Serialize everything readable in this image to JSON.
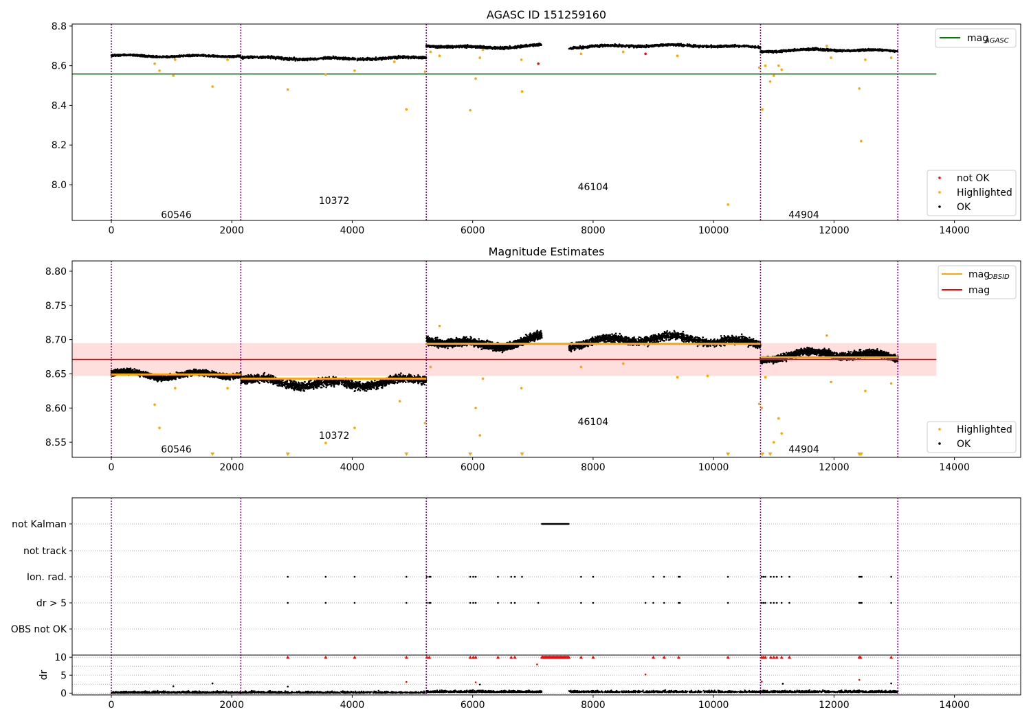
{
  "figure": {
    "title_top": "AGASC ID 151259160",
    "title_middle": "Magnitude Estimates"
  },
  "colors": {
    "ok": "#000000",
    "highlighted": "#ffa500",
    "not_ok": "#ff0000",
    "agasc_line": "#008000",
    "mag_line": "#ff0000",
    "mag_band": "#ffdede",
    "obsid_line": "#ffa500",
    "obsid_boundary": "#800080",
    "grid": "#b0b0b0"
  },
  "chart_data": [
    {
      "type": "scatter",
      "title": "AGASC ID 151259160",
      "xlim": [
        -650,
        15100
      ],
      "ylim": [
        7.82,
        8.81
      ],
      "x_ticks": [
        0,
        2000,
        4000,
        6000,
        8000,
        10000,
        12000,
        14000
      ],
      "x_tick_labels": [
        "0",
        "2000",
        "4000",
        "6000",
        "8000",
        "10000",
        "12000",
        "14000"
      ],
      "y_ticks": [
        8.0,
        8.2,
        8.4,
        8.6,
        8.8
      ],
      "y_tick_labels": [
        "8.0",
        "8.2",
        "8.4",
        "8.6",
        "8.8"
      ],
      "obsid_boundaries": [
        0,
        2150,
        5230,
        10780,
        13060
      ],
      "obsid_labels": [
        {
          "text": "60546",
          "x": 1080,
          "y": 7.85
        },
        {
          "text": "10372",
          "x": 3700,
          "y": 7.92
        },
        {
          "text": "46104",
          "x": 8000,
          "y": 7.99
        },
        {
          "text": "44904",
          "x": 11500,
          "y": 7.85
        }
      ],
      "bands": [
        {
          "x0": 0,
          "x1": 2150,
          "y": 8.651,
          "y_mid": 8.648,
          "spread": 0.008
        },
        {
          "x0": 2150,
          "x1": 5230,
          "y": 8.643,
          "y_mid": 8.635,
          "spread": 0.012
        },
        {
          "x0": 5230,
          "x1": 7150,
          "y": 8.703,
          "y_mid": 8.692,
          "spread": 0.011
        },
        {
          "x0": 7600,
          "x1": 10780,
          "y": 8.692,
          "y_mid": 8.702,
          "spread": 0.011
        },
        {
          "x0": 10780,
          "x1": 13060,
          "y": 8.672,
          "y_mid": 8.68,
          "spread": 0.01
        }
      ],
      "reference_lines": [
        {
          "name": "mag_AGASC",
          "y": 8.558,
          "x0": -650,
          "x1": 13700
        }
      ],
      "highlighted_points": [
        [
          720,
          8.61
        ],
        [
          800,
          8.575
        ],
        [
          1030,
          8.55
        ],
        [
          1060,
          8.63
        ],
        [
          1680,
          8.495
        ],
        [
          1930,
          8.63
        ],
        [
          2930,
          8.48
        ],
        [
          3560,
          8.555
        ],
        [
          4040,
          8.575
        ],
        [
          4700,
          8.62
        ],
        [
          4900,
          8.38
        ],
        [
          5210,
          8.57
        ],
        [
          5300,
          8.67
        ],
        [
          5450,
          8.65
        ],
        [
          5960,
          8.375
        ],
        [
          6050,
          8.535
        ],
        [
          6120,
          8.64
        ],
        [
          6170,
          8.68
        ],
        [
          6820,
          8.47
        ],
        [
          6810,
          8.63
        ],
        [
          7800,
          8.66
        ],
        [
          8500,
          8.67
        ],
        [
          9400,
          8.65
        ],
        [
          10240,
          7.9
        ],
        [
          10760,
          8.59
        ],
        [
          10810,
          8.38
        ],
        [
          10860,
          8.6
        ],
        [
          10940,
          8.52
        ],
        [
          11000,
          8.55
        ],
        [
          11080,
          8.6
        ],
        [
          11130,
          8.58
        ],
        [
          11880,
          8.7
        ],
        [
          11950,
          8.64
        ],
        [
          12420,
          8.485
        ],
        [
          12450,
          8.22
        ],
        [
          12520,
          8.63
        ],
        [
          12950,
          8.64
        ]
      ],
      "not_ok_points": [
        [
          7090,
          8.61
        ],
        [
          8870,
          8.66
        ]
      ],
      "legend": {
        "upper": [
          {
            "label": "mag",
            "sub": "AGASC",
            "kind": "line",
            "color": "#008000"
          }
        ],
        "lower": [
          {
            "label": "not OK",
            "kind": "dot",
            "color": "#ff0000"
          },
          {
            "label": "Highlighted",
            "kind": "dot",
            "color": "#ffa500"
          },
          {
            "label": "OK",
            "kind": "dot",
            "color": "#000000"
          }
        ]
      }
    },
    {
      "type": "scatter",
      "title": "Magnitude Estimates",
      "xlim": [
        -650,
        15100
      ],
      "ylim": [
        8.528,
        8.815
      ],
      "x_ticks": [
        0,
        2000,
        4000,
        6000,
        8000,
        10000,
        12000,
        14000
      ],
      "x_tick_labels": [
        "0",
        "2000",
        "4000",
        "6000",
        "8000",
        "10000",
        "12000",
        "14000"
      ],
      "y_ticks": [
        8.55,
        8.6,
        8.65,
        8.7,
        8.75,
        8.8
      ],
      "y_tick_labels": [
        "8.55",
        "8.60",
        "8.65",
        "8.70",
        "8.75",
        "8.80"
      ],
      "obsid_boundaries": [
        0,
        2150,
        5230,
        10780,
        13060
      ],
      "obsid_labels": [
        {
          "text": "60546",
          "x": 1080,
          "y": 8.54
        },
        {
          "text": "10372",
          "x": 3700,
          "y": 8.56
        },
        {
          "text": "46104",
          "x": 8000,
          "y": 8.58
        },
        {
          "text": "44904",
          "x": 11500,
          "y": 8.54
        }
      ],
      "bands": [
        {
          "x0": 0,
          "x1": 2150,
          "y": 8.651,
          "y_mid": 8.648,
          "spread": 0.008
        },
        {
          "x0": 2150,
          "x1": 5230,
          "y": 8.643,
          "y_mid": 8.635,
          "spread": 0.012
        },
        {
          "x0": 5230,
          "x1": 7150,
          "y": 8.703,
          "y_mid": 8.692,
          "spread": 0.011
        },
        {
          "x0": 7600,
          "x1": 10780,
          "y": 8.692,
          "y_mid": 8.702,
          "spread": 0.011
        },
        {
          "x0": 10780,
          "x1": 13060,
          "y": 8.672,
          "y_mid": 8.68,
          "spread": 0.01
        }
      ],
      "mag": 8.671,
      "mag_band": [
        8.647,
        8.695
      ],
      "mag_line_x": [
        -650,
        13700
      ],
      "obsid_means": [
        {
          "x0": 0,
          "x1": 2150,
          "y": 8.649
        },
        {
          "x0": 2150,
          "x1": 5230,
          "y": 8.643
        },
        {
          "x0": 5230,
          "x1": 10780,
          "y": 8.694
        },
        {
          "x0": 10780,
          "x1": 13060,
          "y": 8.674
        }
      ],
      "highlighted_points": [
        [
          720,
          8.605
        ],
        [
          800,
          8.571
        ],
        [
          1060,
          8.629
        ],
        [
          1930,
          8.629
        ],
        [
          3560,
          8.549
        ],
        [
          4040,
          8.571
        ],
        [
          4790,
          8.61
        ],
        [
          5210,
          8.578
        ],
        [
          5300,
          8.66
        ],
        [
          5450,
          8.72
        ],
        [
          6050,
          8.6
        ],
        [
          6120,
          8.56
        ],
        [
          6170,
          8.643
        ],
        [
          6810,
          8.629
        ],
        [
          7800,
          8.66
        ],
        [
          8500,
          8.665
        ],
        [
          9400,
          8.645
        ],
        [
          9900,
          8.647
        ],
        [
          10760,
          8.606
        ],
        [
          10800,
          8.6
        ],
        [
          10860,
          8.645
        ],
        [
          11000,
          8.55
        ],
        [
          11080,
          8.585
        ],
        [
          11130,
          8.563
        ],
        [
          11880,
          8.706
        ],
        [
          11950,
          8.638
        ],
        [
          12520,
          8.625
        ],
        [
          12950,
          8.636
        ]
      ],
      "below_range_markers": [
        1680,
        2930,
        4900,
        5960,
        6820,
        10240,
        10810,
        10940,
        12420,
        12450
      ],
      "legend": {
        "upper": [
          {
            "label": "mag",
            "sub": "OBSID",
            "kind": "line",
            "color": "#ffa500"
          },
          {
            "label": "mag",
            "kind": "line",
            "color": "#ff0000"
          }
        ],
        "lower": [
          {
            "label": "Highlighted",
            "kind": "dot",
            "color": "#ffa500"
          },
          {
            "label": "OK",
            "kind": "dot",
            "color": "#000000"
          }
        ]
      }
    },
    {
      "type": "scatter",
      "xlim": [
        -650,
        15100
      ],
      "x_ticks": [
        0,
        2000,
        4000,
        6000,
        8000,
        10000,
        12000,
        14000
      ],
      "x_tick_labels": [
        "0",
        "2000",
        "4000",
        "6000",
        "8000",
        "10000",
        "12000",
        "14000"
      ],
      "obsid_boundaries": [
        0,
        2150,
        5230,
        10780,
        13060
      ],
      "flag_rows": [
        {
          "label": "not Kalman",
          "ranges": [
            [
              7150,
              7600
            ]
          ],
          "points": []
        },
        {
          "label": "not track",
          "ranges": [],
          "points": []
        },
        {
          "label": "Ion. rad.",
          "ranges": [],
          "points": [
            2930,
            3560,
            4040,
            4900,
            5240,
            5280,
            5300,
            5960,
            6010,
            6050,
            6420,
            6640,
            6700,
            6820,
            7800,
            8000,
            9000,
            9180,
            9420,
            9440,
            10240,
            10800,
            10830,
            10860,
            10950,
            11000,
            11050,
            11130,
            11260,
            12420,
            12440,
            12460,
            12950
          ]
        },
        {
          "label": "dr > 5",
          "ranges": [],
          "points": [
            2930,
            3560,
            4040,
            4900,
            5240,
            5280,
            5300,
            5960,
            6010,
            6050,
            6420,
            6640,
            6700,
            7090,
            7800,
            8000,
            8870,
            9000,
            9180,
            9420,
            9440,
            10240,
            10800,
            10830,
            10860,
            10950,
            11000,
            11050,
            11130,
            11260,
            12420,
            12440,
            12460,
            12950
          ]
        },
        {
          "label": "OBS not OK",
          "ranges": [],
          "points": []
        }
      ],
      "dr": {
        "ylabel": "dr",
        "ylim": [
          -0.5,
          10.6
        ],
        "y_ticks": [
          0,
          5,
          10
        ],
        "y_tick_labels": [
          "0",
          "5",
          "10"
        ],
        "segments": [
          [
            0,
            2150
          ],
          [
            2150,
            5230
          ],
          [
            5230,
            7150
          ],
          [
            7600,
            10780
          ],
          [
            10780,
            13060
          ]
        ],
        "clipped_points": [
          2930,
          3560,
          4040,
          4900,
          5240,
          5280,
          5960,
          6010,
          6050,
          6420,
          6640,
          6700,
          7800,
          8000,
          9000,
          9180,
          9420,
          10240,
          10800,
          10830,
          10860,
          10950,
          11000,
          11050,
          11130,
          11260,
          12420,
          12440,
          12950
        ],
        "clipped_range": [
          7150,
          7600
        ],
        "red_points": [
          [
            4900,
            3.1
          ],
          [
            6050,
            3.0
          ],
          [
            7070,
            8.0
          ],
          [
            8870,
            5.2
          ],
          [
            10800,
            3.2
          ],
          [
            12420,
            3.7
          ]
        ],
        "black_outliers": [
          [
            1030,
            1.9
          ],
          [
            1680,
            2.7
          ],
          [
            2930,
            1.8
          ],
          [
            6120,
            2.4
          ],
          [
            11150,
            2.6
          ],
          [
            12950,
            2.7
          ]
        ]
      }
    }
  ]
}
